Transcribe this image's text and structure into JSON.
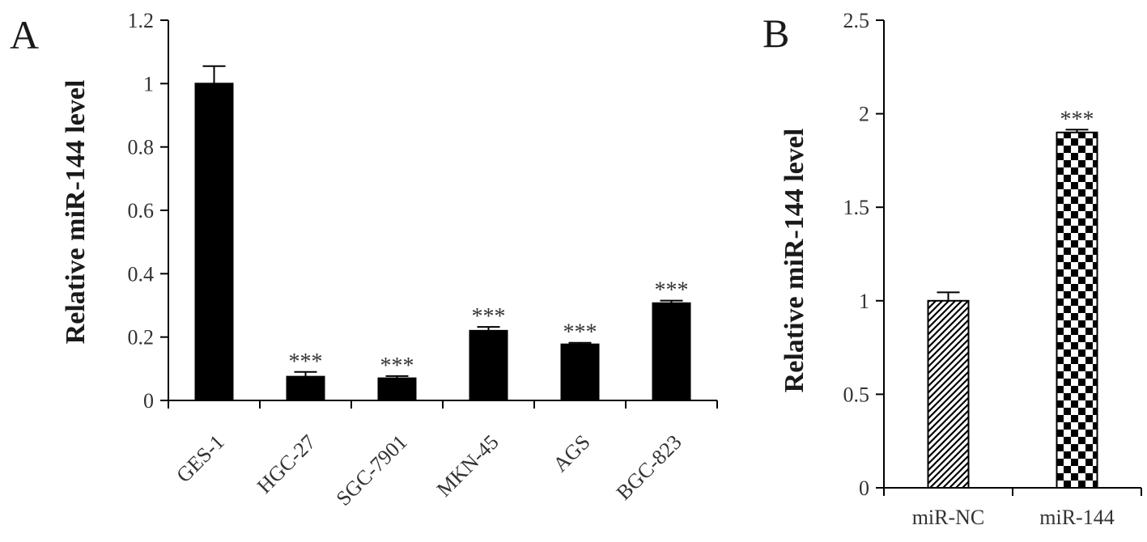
{
  "chart_data": [
    {
      "panel": "A",
      "type": "bar",
      "ylabel": "Relative miR-144 level",
      "xlabel": "",
      "ylim": [
        0,
        1.2
      ],
      "yticks": [
        "0",
        "0.2",
        "0.4",
        "0.6",
        "0.8",
        "1",
        "1.2"
      ],
      "categories": [
        "GES-1",
        "HGC-27",
        "SGC-7901",
        "MKN-45",
        "AGS",
        "BGC-823"
      ],
      "values": [
        1.0,
        0.075,
        0.07,
        0.22,
        0.177,
        0.307
      ],
      "errors": [
        0.055,
        0.015,
        0.007,
        0.012,
        0.005,
        0.008
      ],
      "significance": [
        "",
        "***",
        "***",
        "***",
        "***",
        "***"
      ],
      "fills": [
        "solid",
        "solid",
        "solid",
        "solid",
        "solid",
        "solid"
      ],
      "grid": false,
      "legend": "none"
    },
    {
      "panel": "B",
      "type": "bar",
      "ylabel": "Relative miR-144 level",
      "xlabel": "",
      "ylim": [
        0,
        2.5
      ],
      "yticks": [
        "0",
        "0.5",
        "1",
        "1.5",
        "2",
        "2.5"
      ],
      "categories": [
        "miR-NC",
        "miR-144"
      ],
      "values": [
        1.0,
        1.9
      ],
      "errors": [
        0.045,
        0.015
      ],
      "significance": [
        "",
        "***"
      ],
      "fills": [
        "diagonal-hatch",
        "checkerboard"
      ],
      "grid": false,
      "legend": "none"
    }
  ],
  "colors": {
    "bar": "#000000",
    "axis": "#000000",
    "text": "#333333"
  }
}
